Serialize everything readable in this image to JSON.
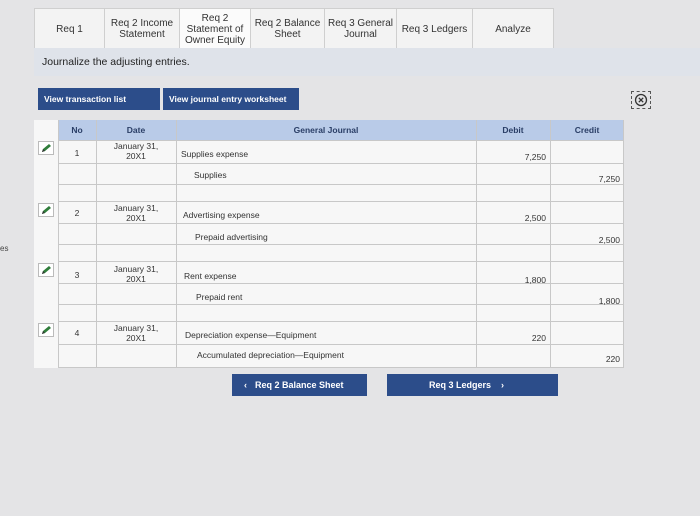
{
  "tabs": [
    {
      "label": "Req 1"
    },
    {
      "label": "Req 2 Income\nStatement"
    },
    {
      "label": "Req 2\nStatement of\nOwner Equity"
    },
    {
      "label": "Req 2 Balance\nSheet"
    },
    {
      "label": "Req 3 General\nJournal"
    },
    {
      "label": "Req 3 Ledgers"
    },
    {
      "label": "Analyze"
    }
  ],
  "instruction": "Journalize the adjusting entries.",
  "buttons": {
    "view_transaction_list": "View transaction list",
    "view_journal_worksheet": "View journal entry worksheet"
  },
  "side_label": "es",
  "table": {
    "headers": {
      "no": "No",
      "date": "Date",
      "journal": "General Journal",
      "debit": "Debit",
      "credit": "Credit"
    },
    "entries": [
      {
        "no": "1",
        "date": "January 31,\n20X1",
        "debit_account": "Supplies expense",
        "credit_account": "Supplies",
        "debit": "7,250",
        "credit": "7,250"
      },
      {
        "no": "2",
        "date": "January 31,\n20X1",
        "debit_account": "Advertising expense",
        "credit_account": "Prepaid advertising",
        "debit": "2,500",
        "credit": "2,500"
      },
      {
        "no": "3",
        "date": "January 31,\n20X1",
        "debit_account": "Rent expense",
        "credit_account": "Prepaid rent",
        "debit": "1,800",
        "credit": "1,800"
      },
      {
        "no": "4",
        "date": "January 31,\n20X1",
        "debit_account": "Depreciation expense—Equipment",
        "credit_account": "Accumulated depreciation—Equipment",
        "debit": "220",
        "credit": "220"
      }
    ]
  },
  "nav": {
    "prev_label": "Req 2 Balance Sheet",
    "next_label": "Req 3 Ledgers"
  },
  "icons": {
    "edit": "pencil-icon",
    "close": "close-icon",
    "prev": "chevron-left-icon",
    "next": "chevron-right-icon"
  }
}
